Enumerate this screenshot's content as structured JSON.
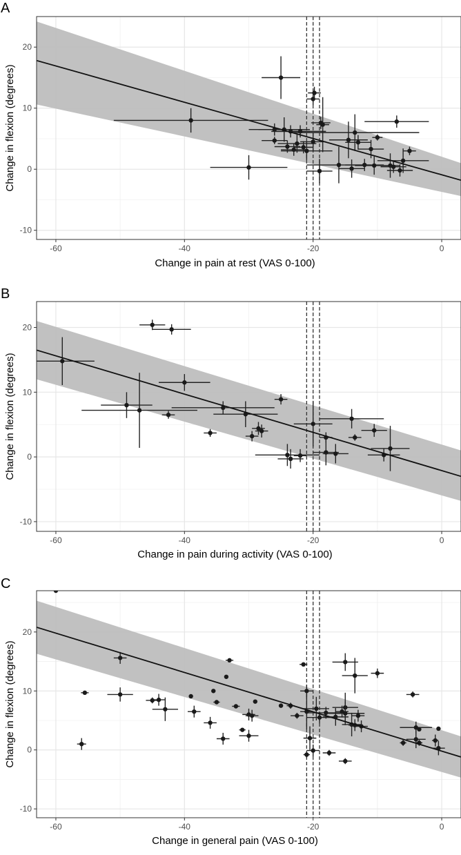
{
  "chart_data": [
    {
      "type": "scatter",
      "panel_label": "A",
      "xlabel": "Change in pain at rest (VAS 0-100)",
      "ylabel": "Change in flexion (degrees)",
      "xlim": [
        -63,
        3
      ],
      "ylim": [
        -11.5,
        25
      ],
      "x_ticks": [
        -60,
        -40,
        -20,
        0
      ],
      "y_ticks": [
        -10,
        0,
        10,
        20
      ],
      "grid": true,
      "regression": {
        "x0": -63,
        "y0": 17.8,
        "x1": 3,
        "y1": -1.8
      },
      "band": {
        "lower0": 10.6,
        "upper0": 24.2,
        "lower1": -4.4,
        "upper1": 1.0
      },
      "reference_lines": {
        "solid": -20,
        "dashed": [
          -21,
          -19
        ]
      },
      "points": [
        {
          "x": -39,
          "y": 8,
          "xe": 12,
          "ye": 2
        },
        {
          "x": -25,
          "y": 15,
          "xe": 3,
          "ye": 3.5
        },
        {
          "x": -30,
          "y": 0.3,
          "xe": 6,
          "ye": 2
        },
        {
          "x": -26,
          "y": 6.5,
          "xe": 4,
          "ye": 1
        },
        {
          "x": -26,
          "y": 4.7,
          "xe": 2,
          "ye": 0.6
        },
        {
          "x": -24.5,
          "y": 6.5,
          "xe": 4,
          "ye": 2
        },
        {
          "x": -24,
          "y": 3.7,
          "xe": 2,
          "ye": 1
        },
        {
          "x": -23.5,
          "y": 6.2,
          "xe": 3,
          "ye": 1
        },
        {
          "x": -23,
          "y": 3.2,
          "xe": 2,
          "ye": 1
        },
        {
          "x": -22.5,
          "y": 4.2,
          "xe": 3,
          "ye": 1.5
        },
        {
          "x": -22,
          "y": 6.2,
          "xe": 4,
          "ye": 1
        },
        {
          "x": -21.5,
          "y": 3.6,
          "xe": 1.5,
          "ye": 1
        },
        {
          "x": -21,
          "y": 3,
          "xe": 4,
          "ye": 1.5
        },
        {
          "x": -20,
          "y": 11.5,
          "xe": 1,
          "ye": 1
        },
        {
          "x": -19.8,
          "y": 12.5,
          "xe": 1,
          "ye": 1
        },
        {
          "x": -20,
          "y": 4.5,
          "xe": 2,
          "ye": 1.5
        },
        {
          "x": -18.8,
          "y": 7.6,
          "xe": 1.5,
          "ye": 1
        },
        {
          "x": -18.5,
          "y": 7.3,
          "xe": 1,
          "ye": 4.5
        },
        {
          "x": -19,
          "y": -0.3,
          "xe": 2,
          "ye": 2
        },
        {
          "x": -16,
          "y": 0.7,
          "xe": 5,
          "ye": 3
        },
        {
          "x": -14.5,
          "y": 4.8,
          "xe": 3,
          "ye": 3
        },
        {
          "x": -14,
          "y": 0.1,
          "xe": 2,
          "ye": 1.5
        },
        {
          "x": -13.5,
          "y": 6,
          "xe": 10,
          "ye": 3
        },
        {
          "x": -13,
          "y": 4.4,
          "xe": 2,
          "ye": 1.2
        },
        {
          "x": -12,
          "y": 0.7,
          "xe": 3,
          "ye": 1
        },
        {
          "x": -11,
          "y": 3.3,
          "xe": 2,
          "ye": 1.5
        },
        {
          "x": -10.5,
          "y": 0.6,
          "xe": 3,
          "ye": 1.5
        },
        {
          "x": -10,
          "y": 5.2,
          "xe": 0.8,
          "ye": 0.5
        },
        {
          "x": -8,
          "y": 0.6,
          "xe": 1.5,
          "ye": 2
        },
        {
          "x": -7.5,
          "y": 0.4,
          "xe": 2,
          "ye": 1
        },
        {
          "x": -7,
          "y": 7.8,
          "xe": 5,
          "ye": 1
        },
        {
          "x": -6.5,
          "y": -0.2,
          "xe": 2,
          "ye": 1
        },
        {
          "x": -6,
          "y": 1.4,
          "xe": 4,
          "ye": 2
        },
        {
          "x": -5,
          "y": 3,
          "xe": 1,
          "ye": 0.7
        }
      ]
    },
    {
      "type": "scatter",
      "panel_label": "B",
      "xlabel": "Change in pain during activity (VAS 0-100)",
      "ylabel": "Change in flexion (degrees)",
      "xlim": [
        -63,
        3
      ],
      "ylim": [
        -11.5,
        24
      ],
      "x_ticks": [
        -60,
        -40,
        -20,
        0
      ],
      "y_ticks": [
        -10,
        0,
        10,
        20
      ],
      "grid": true,
      "regression": {
        "x0": -63,
        "y0": 16.5,
        "x1": 3,
        "y1": -3
      },
      "band": {
        "lower0": 12,
        "upper0": 21,
        "lower1": -6.8,
        "upper1": 1.0
      },
      "reference_lines": {
        "solid": -20,
        "dashed": [
          -21,
          -19
        ]
      },
      "points": [
        {
          "x": -59,
          "y": 14.8,
          "xe": 5,
          "ye": 3.7
        },
        {
          "x": -49,
          "y": 8,
          "xe": 4,
          "ye": 2
        },
        {
          "x": -47,
          "y": 7.2,
          "xe": 9,
          "ye": 5.8
        },
        {
          "x": -45,
          "y": 20.4,
          "xe": 2,
          "ye": 0.8
        },
        {
          "x": -42.5,
          "y": 6.5,
          "xe": 1,
          "ye": 0.6
        },
        {
          "x": -42,
          "y": 19.7,
          "xe": 3,
          "ye": 0.8
        },
        {
          "x": -40,
          "y": 11.5,
          "xe": 4,
          "ye": 1.3
        },
        {
          "x": -36,
          "y": 3.7,
          "xe": 1,
          "ye": 0.6
        },
        {
          "x": -34,
          "y": 7.6,
          "xe": 8,
          "ye": 1
        },
        {
          "x": -30.5,
          "y": 6.6,
          "xe": 5,
          "ye": 2
        },
        {
          "x": -29.5,
          "y": 3.2,
          "xe": 1,
          "ye": 0.8
        },
        {
          "x": -28.5,
          "y": 4.4,
          "xe": 1,
          "ye": 1
        },
        {
          "x": -28,
          "y": 4,
          "xe": 1,
          "ye": 1
        },
        {
          "x": -25,
          "y": 8.9,
          "xe": 1,
          "ye": 0.8
        },
        {
          "x": -24,
          "y": 0.3,
          "xe": 5,
          "ye": 1.7
        },
        {
          "x": -23.5,
          "y": -0.3,
          "xe": 2,
          "ye": 1.5
        },
        {
          "x": -22,
          "y": 0.2,
          "xe": 1,
          "ye": 1
        },
        {
          "x": -20,
          "y": 5.1,
          "xe": 3,
          "ye": 3.5
        },
        {
          "x": -18,
          "y": 3,
          "xe": 1,
          "ye": 0.8
        },
        {
          "x": -18,
          "y": 0.7,
          "xe": 2,
          "ye": 2
        },
        {
          "x": -16.5,
          "y": 0.5,
          "xe": 2,
          "ye": 1.5
        },
        {
          "x": -14,
          "y": 5.9,
          "xe": 5,
          "ye": 1.5
        },
        {
          "x": -13.5,
          "y": 3,
          "xe": 1,
          "ye": 0.5
        },
        {
          "x": -10.5,
          "y": 4.1,
          "xe": 2,
          "ye": 1
        },
        {
          "x": -9,
          "y": 0.3,
          "xe": 2.5,
          "ye": 1
        },
        {
          "x": -8,
          "y": 1.3,
          "xe": 3,
          "ye": 3.5
        }
      ]
    },
    {
      "type": "scatter",
      "panel_label": "C",
      "xlabel": "Change in general pain (VAS 0-100)",
      "ylabel": "Change in flexion (degrees)",
      "xlim": [
        -63,
        3
      ],
      "ylim": [
        -11.5,
        27
      ],
      "x_ticks": [
        -60,
        -40,
        -20,
        0
      ],
      "y_ticks": [
        -10,
        0,
        10,
        20
      ],
      "grid": true,
      "regression": {
        "x0": -63,
        "y0": 20.8,
        "x1": 3,
        "y1": -1.2
      },
      "band": {
        "lower0": 16.3,
        "upper0": 25.3,
        "lower1": -4.7,
        "upper1": 2.3
      },
      "reference_lines": {
        "solid": -20,
        "dashed": [
          -21,
          -19
        ]
      },
      "points": [
        {
          "x": -60,
          "y": 27,
          "xe": 0,
          "ye": 0
        },
        {
          "x": -55.5,
          "y": 9.7,
          "xe": 0.6,
          "ye": 0.3
        },
        {
          "x": -56,
          "y": 1,
          "xe": 0.7,
          "ye": 1
        },
        {
          "x": -50,
          "y": 15.6,
          "xe": 1,
          "ye": 1
        },
        {
          "x": -50,
          "y": 9.4,
          "xe": 2,
          "ye": 1.2
        },
        {
          "x": -45,
          "y": 8.4,
          "xe": 1,
          "ye": 0.5
        },
        {
          "x": -44,
          "y": 8.5,
          "xe": 1,
          "ye": 1
        },
        {
          "x": -43,
          "y": 6.9,
          "xe": 2,
          "ye": 2
        },
        {
          "x": -39,
          "y": 9.1,
          "xe": 0,
          "ye": 0
        },
        {
          "x": -38.5,
          "y": 6.5,
          "xe": 1,
          "ye": 1
        },
        {
          "x": -36,
          "y": 4.6,
          "xe": 1,
          "ye": 1
        },
        {
          "x": -35.5,
          "y": 10,
          "xe": 0,
          "ye": 0
        },
        {
          "x": -35,
          "y": 8.1,
          "xe": 0.5,
          "ye": 0.3
        },
        {
          "x": -34,
          "y": 1.9,
          "xe": 1,
          "ye": 1
        },
        {
          "x": -33.5,
          "y": 12.4,
          "xe": 0,
          "ye": 0
        },
        {
          "x": -33,
          "y": 15.2,
          "xe": 0.6,
          "ye": 0.3
        },
        {
          "x": -32,
          "y": 7.4,
          "xe": 0.6,
          "ye": 0.3
        },
        {
          "x": -31,
          "y": 3.4,
          "xe": 0.5,
          "ye": 0.3
        },
        {
          "x": -30,
          "y": 6,
          "xe": 1,
          "ye": 1
        },
        {
          "x": -29.5,
          "y": 5.8,
          "xe": 1,
          "ye": 1
        },
        {
          "x": -29,
          "y": 8.2,
          "xe": 0,
          "ye": 0
        },
        {
          "x": -30,
          "y": 2.4,
          "xe": 1.5,
          "ye": 1
        },
        {
          "x": -25,
          "y": 7.5,
          "xe": 0,
          "ye": 0
        },
        {
          "x": -23.5,
          "y": 7.5,
          "xe": 0.6,
          "ye": 0.5
        },
        {
          "x": -22.5,
          "y": 5.8,
          "xe": 1,
          "ye": 0.5
        },
        {
          "x": -21.5,
          "y": 14.5,
          "xe": 0.6,
          "ye": 0.3
        },
        {
          "x": -21,
          "y": 10,
          "xe": 1,
          "ye": 1
        },
        {
          "x": -21,
          "y": 6.5,
          "xe": 1,
          "ye": 3
        },
        {
          "x": -20.5,
          "y": 2,
          "xe": 1,
          "ye": 2
        },
        {
          "x": -21,
          "y": -0.8,
          "xe": 0.5,
          "ye": 0.5
        },
        {
          "x": -20,
          "y": -0.1,
          "xe": 1,
          "ye": 1
        },
        {
          "x": -19.5,
          "y": 7,
          "xe": 2,
          "ye": 2
        },
        {
          "x": -19,
          "y": 5.5,
          "xe": 2,
          "ye": 1
        },
        {
          "x": -18,
          "y": 6.3,
          "xe": 3,
          "ye": 1
        },
        {
          "x": -17.5,
          "y": -0.5,
          "xe": 1,
          "ye": 0.5
        },
        {
          "x": -16.5,
          "y": 5.6,
          "xe": 2,
          "ye": 1.5
        },
        {
          "x": -15.5,
          "y": 6.5,
          "xe": 1,
          "ye": 1
        },
        {
          "x": -15,
          "y": 14.9,
          "xe": 2,
          "ye": 1.5
        },
        {
          "x": -15,
          "y": 7.2,
          "xe": 2,
          "ye": 2.5
        },
        {
          "x": -15,
          "y": 6.2,
          "xe": 3,
          "ye": 2
        },
        {
          "x": -15,
          "y": -1.9,
          "xe": 1,
          "ye": 0.5
        },
        {
          "x": -14,
          "y": 4.3,
          "xe": 1.5,
          "ye": 2
        },
        {
          "x": -13.5,
          "y": 12.6,
          "xe": 2,
          "ye": 3
        },
        {
          "x": -13.5,
          "y": 4.2,
          "xe": 1,
          "ye": 1
        },
        {
          "x": -13,
          "y": 5.8,
          "xe": 1,
          "ye": 1
        },
        {
          "x": -12.5,
          "y": 4,
          "xe": 1,
          "ye": 1
        },
        {
          "x": -10,
          "y": 13,
          "xe": 1,
          "ye": 0.8
        },
        {
          "x": -4.5,
          "y": 9.4,
          "xe": 1,
          "ye": 0.5
        },
        {
          "x": -4,
          "y": 3.8,
          "xe": 2.5,
          "ye": 1
        },
        {
          "x": -4,
          "y": 1.8,
          "xe": 1.5,
          "ye": 1.5
        },
        {
          "x": -3.5,
          "y": 3.5,
          "xe": 0,
          "ye": 0
        },
        {
          "x": -3.5,
          "y": 1.2,
          "xe": 0.5,
          "ye": 0.5
        },
        {
          "x": -1,
          "y": 1.6,
          "xe": 0.5,
          "ye": 1
        },
        {
          "x": -0.5,
          "y": 3.6,
          "xe": 0,
          "ye": 0
        },
        {
          "x": -0.5,
          "y": 0.3,
          "xe": 1,
          "ye": 1.2
        },
        {
          "x": -6,
          "y": 1.2,
          "xe": 0.5,
          "ye": 0.5
        }
      ]
    }
  ]
}
